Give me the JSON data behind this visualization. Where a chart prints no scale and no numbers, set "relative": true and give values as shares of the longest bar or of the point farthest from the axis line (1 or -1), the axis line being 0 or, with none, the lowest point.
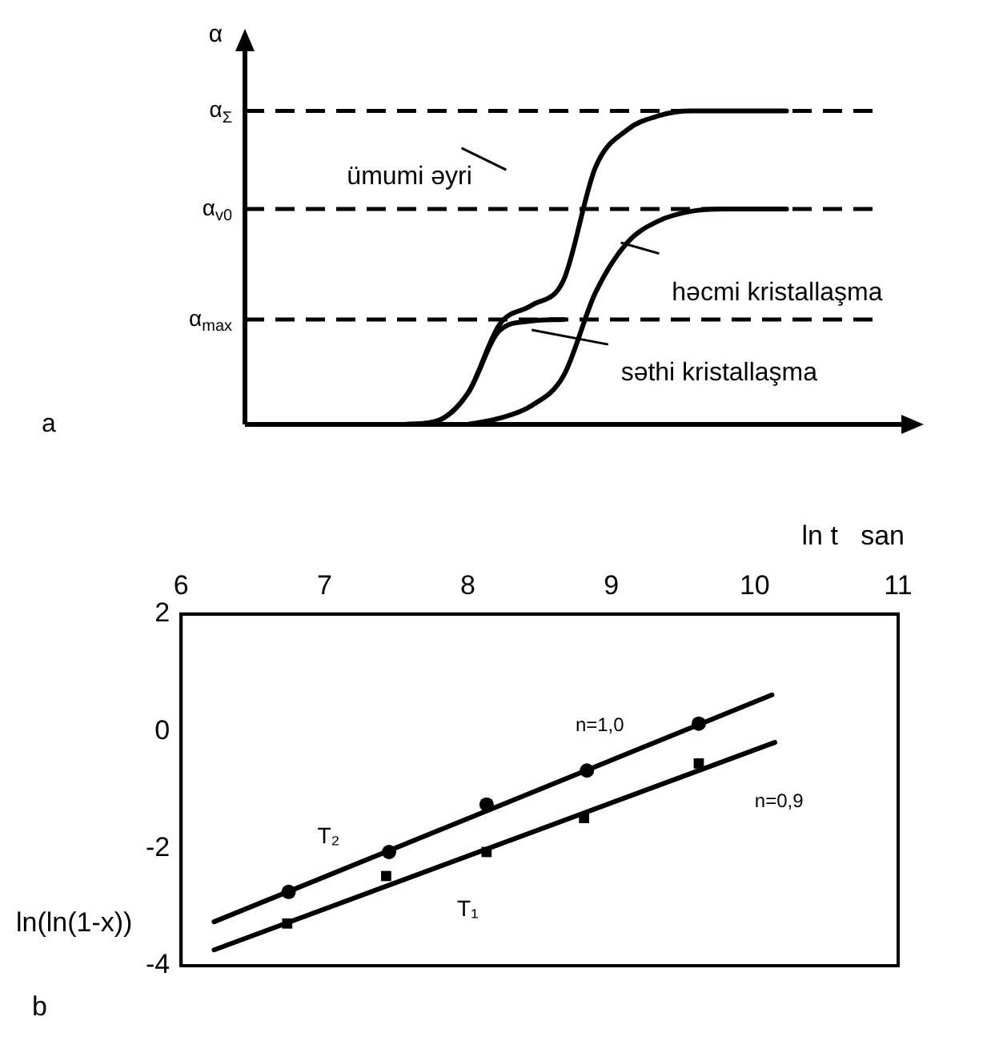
{
  "chart_data": [
    {
      "type": "line",
      "relative": true,
      "ylabel": "α",
      "marker": "none",
      "line_style": "solid",
      "categories": [
        null,
        null,
        null,
        null,
        null,
        null,
        null,
        null,
        null,
        null,
        null,
        null,
        null,
        null,
        null,
        null,
        null,
        null,
        null,
        null,
        null
      ],
      "series": [
        {
          "color": "#000000",
          "values": [
            0,
            0,
            0,
            0,
            0,
            0,
            0.01,
            0.1,
            0.32,
            0.38,
            0.46,
            0.82,
            0.94,
            0.985,
            1,
            1,
            1,
            1,
            null,
            null,
            null
          ]
        },
        {
          "color": "#000000",
          "values": [
            null,
            null,
            null,
            null,
            null,
            null,
            null,
            0,
            0.02,
            0.06,
            0.155,
            0.42,
            0.58,
            0.65,
            0.68,
            0.6875,
            0.6875,
            0.6875,
            null,
            null,
            null
          ]
        },
        {
          "color": "#000000",
          "values": [
            null,
            null,
            null,
            null,
            null,
            0,
            0.01,
            0.1,
            0.3,
            0.33,
            0.335,
            null,
            null,
            null,
            null,
            null,
            null,
            null,
            null,
            null,
            null
          ]
        }
      ],
      "ref_lines": [
        {
          "axis": "y",
          "value": 1,
          "label": "α$_{Σ}$",
          "line_style": "dashed"
        },
        {
          "axis": "y",
          "value": 0.6875,
          "label": "α$_{v0}$",
          "line_style": "dashed"
        },
        {
          "axis": "y",
          "value": 0.335,
          "label": "α$_{max}$",
          "line_style": "dashed"
        }
      ],
      "annotations": [
        "ümumi əyri",
        "həcmi kristallaşma",
        "səthi kristallaşma",
        "a"
      ]
    },
    {
      "type": "scatter",
      "xlabel": "ln t   san",
      "ylabel": "ln(ln(1-x))",
      "xlim": [
        6,
        11
      ],
      "xticks": [
        6,
        7,
        8,
        9,
        10,
        11
      ],
      "ylim": [
        -4,
        2
      ],
      "yticks": [
        -4,
        -2,
        0,
        2
      ],
      "series": [
        {
          "type": "line",
          "marker": "none",
          "color": "#000000",
          "x": [
            6.23,
            10.12
          ],
          "values": [
            -3.25,
            0.62
          ]
        },
        {
          "type": "line",
          "marker": "none",
          "color": "#000000",
          "x": [
            6.23,
            10.14
          ],
          "values": [
            -3.73,
            -0.19
          ]
        },
        {
          "type": "scatter",
          "marker": "circle",
          "color": "#000000",
          "x": [
            6.75,
            7.45,
            8.13,
            8.83,
            9.61
          ],
          "values": [
            -2.74,
            -2.06,
            -1.25,
            -0.67,
            0.13
          ]
        },
        {
          "type": "scatter",
          "marker": "square",
          "color": "#000000",
          "x": [
            6.74,
            7.43,
            8.13,
            8.81,
            9.61
          ],
          "values": [
            -3.28,
            -2.47,
            -2.06,
            -1.48,
            -0.55
          ]
        }
      ],
      "annotations": [
        "T₂",
        "T₁",
        "n=1,0",
        "n=0,9",
        "b"
      ]
    }
  ]
}
